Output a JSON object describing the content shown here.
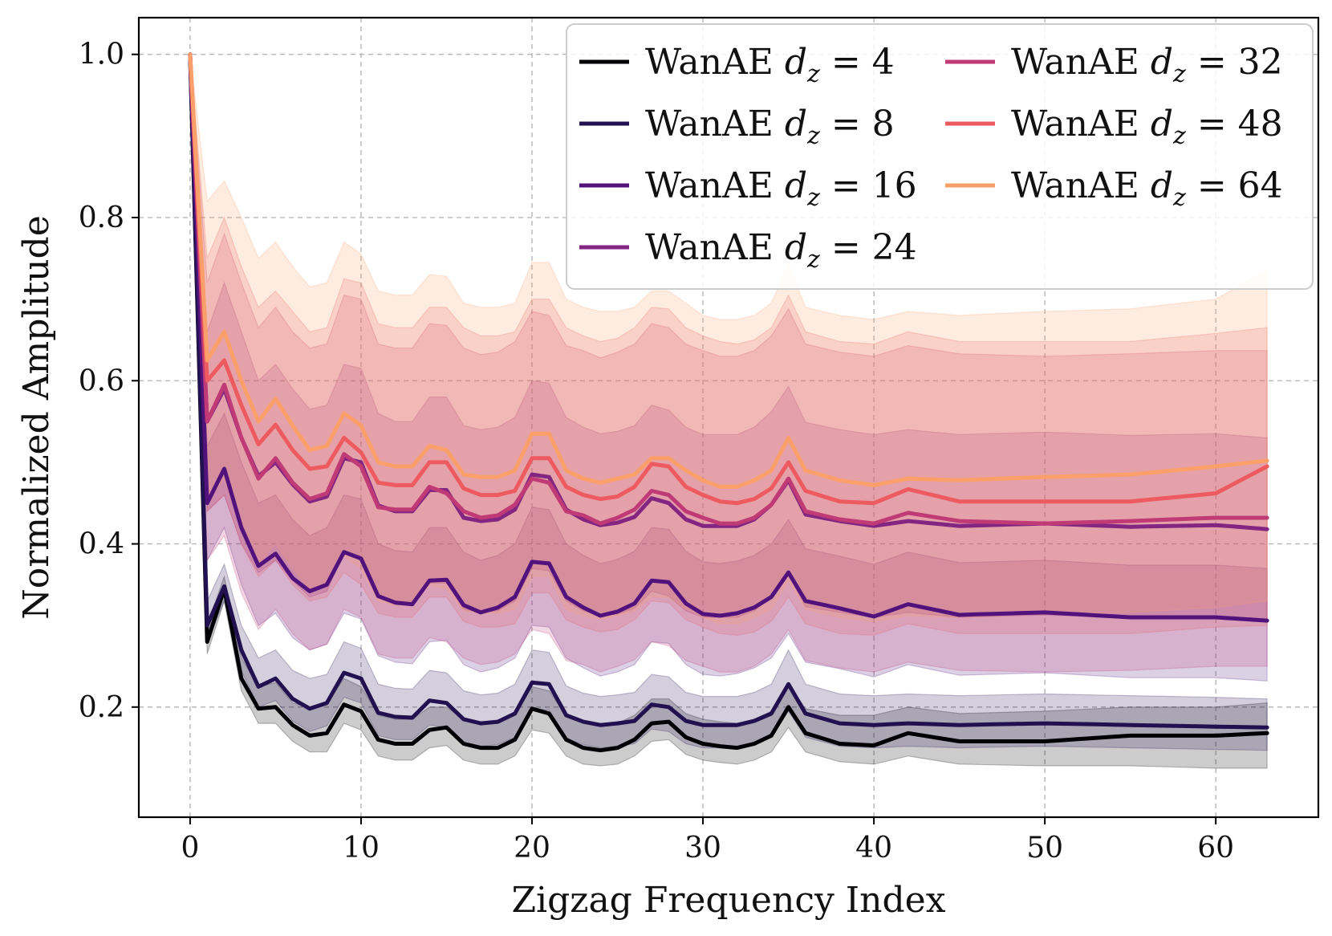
{
  "chart_data": {
    "type": "line",
    "title": "",
    "xlabel": "Zigzag Frequency Index",
    "ylabel": "Normalized Amplitude",
    "xlim": [
      -3,
      66
    ],
    "ylim": [
      0.065,
      1.045
    ],
    "xticks": [
      0,
      10,
      20,
      30,
      40,
      50,
      60
    ],
    "yticks": [
      0.2,
      0.4,
      0.6,
      0.8,
      1.0
    ],
    "ytick_labels": [
      "0.2",
      "0.4",
      "0.6",
      "0.8",
      "1.0"
    ],
    "grid": true,
    "legend": {
      "position": "top-right",
      "columns": 2
    },
    "key_values": [
      0,
      1,
      2,
      3,
      4,
      5,
      6,
      7,
      8,
      9,
      10,
      11,
      12,
      13,
      14,
      15,
      16,
      17,
      18,
      19,
      20,
      21,
      22,
      23,
      24,
      25,
      26,
      27,
      28,
      29,
      30,
      31,
      32,
      33,
      34,
      35,
      36,
      38,
      40,
      42,
      45,
      50,
      55,
      60,
      63
    ],
    "series": [
      {
        "name": "WanAE d_z = 4",
        "prefix": "WanAE ",
        "sym": "d",
        "sub": "z",
        "eq": " = 4",
        "color": "#000004",
        "values": [
          1.0,
          0.28,
          0.345,
          0.235,
          0.198,
          0.2,
          0.178,
          0.165,
          0.168,
          0.203,
          0.195,
          0.16,
          0.155,
          0.155,
          0.172,
          0.175,
          0.155,
          0.15,
          0.15,
          0.16,
          0.198,
          0.192,
          0.16,
          0.15,
          0.147,
          0.15,
          0.16,
          0.18,
          0.182,
          0.163,
          0.155,
          0.152,
          0.15,
          0.155,
          0.165,
          0.2,
          0.168,
          0.155,
          0.153,
          0.168,
          0.158,
          0.158,
          0.165,
          0.165,
          0.168
        ],
        "upper": [
          1.0,
          0.3,
          0.36,
          0.26,
          0.225,
          0.23,
          0.205,
          0.2,
          0.205,
          0.235,
          0.225,
          0.19,
          0.185,
          0.185,
          0.2,
          0.2,
          0.185,
          0.18,
          0.18,
          0.19,
          0.225,
          0.22,
          0.19,
          0.18,
          0.178,
          0.18,
          0.19,
          0.21,
          0.21,
          0.192,
          0.185,
          0.182,
          0.18,
          0.185,
          0.195,
          0.228,
          0.198,
          0.19,
          0.19,
          0.2,
          0.192,
          0.195,
          0.2,
          0.2,
          0.205
        ],
        "lower": [
          1.0,
          0.265,
          0.33,
          0.22,
          0.18,
          0.18,
          0.158,
          0.145,
          0.145,
          0.18,
          0.172,
          0.14,
          0.135,
          0.135,
          0.15,
          0.153,
          0.135,
          0.13,
          0.13,
          0.14,
          0.172,
          0.168,
          0.14,
          0.13,
          0.128,
          0.13,
          0.14,
          0.158,
          0.16,
          0.142,
          0.135,
          0.132,
          0.13,
          0.135,
          0.145,
          0.175,
          0.145,
          0.133,
          0.13,
          0.14,
          0.13,
          0.128,
          0.128,
          0.125,
          0.125
        ]
      },
      {
        "name": "WanAE d_z = 8",
        "prefix": "WanAE ",
        "sym": "d",
        "sub": "z",
        "eq": " = 8",
        "color": "#221150",
        "values": [
          1.0,
          0.3,
          0.348,
          0.27,
          0.225,
          0.235,
          0.21,
          0.198,
          0.205,
          0.242,
          0.235,
          0.193,
          0.188,
          0.187,
          0.208,
          0.205,
          0.185,
          0.18,
          0.182,
          0.192,
          0.23,
          0.228,
          0.19,
          0.182,
          0.178,
          0.18,
          0.183,
          0.203,
          0.2,
          0.183,
          0.178,
          0.178,
          0.178,
          0.183,
          0.192,
          0.228,
          0.192,
          0.18,
          0.178,
          0.18,
          0.178,
          0.18,
          0.178,
          0.176,
          0.175
        ],
        "upper": [
          1.0,
          0.33,
          0.375,
          0.3,
          0.26,
          0.27,
          0.245,
          0.235,
          0.24,
          0.28,
          0.272,
          0.228,
          0.223,
          0.222,
          0.245,
          0.242,
          0.22,
          0.215,
          0.217,
          0.228,
          0.27,
          0.267,
          0.226,
          0.217,
          0.213,
          0.215,
          0.218,
          0.24,
          0.237,
          0.218,
          0.213,
          0.213,
          0.213,
          0.218,
          0.228,
          0.27,
          0.228,
          0.216,
          0.214,
          0.216,
          0.214,
          0.216,
          0.214,
          0.212,
          0.21
        ],
        "lower": [
          1.0,
          0.28,
          0.33,
          0.245,
          0.2,
          0.208,
          0.183,
          0.17,
          0.177,
          0.212,
          0.205,
          0.165,
          0.16,
          0.16,
          0.178,
          0.175,
          0.157,
          0.152,
          0.154,
          0.163,
          0.198,
          0.196,
          0.162,
          0.154,
          0.15,
          0.152,
          0.155,
          0.173,
          0.17,
          0.155,
          0.15,
          0.15,
          0.15,
          0.155,
          0.163,
          0.195,
          0.163,
          0.152,
          0.15,
          0.152,
          0.15,
          0.152,
          0.15,
          0.148,
          0.147
        ]
      },
      {
        "name": "WanAE d_z = 16",
        "prefix": "WanAE ",
        "sym": "d",
        "sub": "z",
        "eq": " = 16",
        "color": "#51127c",
        "values": [
          1.0,
          0.45,
          0.492,
          0.42,
          0.373,
          0.388,
          0.358,
          0.342,
          0.35,
          0.39,
          0.382,
          0.336,
          0.328,
          0.326,
          0.355,
          0.356,
          0.325,
          0.316,
          0.322,
          0.335,
          0.378,
          0.376,
          0.335,
          0.322,
          0.312,
          0.317,
          0.327,
          0.355,
          0.353,
          0.327,
          0.314,
          0.312,
          0.315,
          0.322,
          0.335,
          0.365,
          0.33,
          0.321,
          0.311,
          0.326,
          0.313,
          0.316,
          0.31,
          0.31,
          0.306
        ],
        "upper": [
          1.0,
          0.52,
          0.56,
          0.5,
          0.45,
          0.46,
          0.43,
          0.41,
          0.42,
          0.46,
          0.455,
          0.4,
          0.392,
          0.39,
          0.42,
          0.42,
          0.39,
          0.38,
          0.386,
          0.4,
          0.445,
          0.442,
          0.4,
          0.386,
          0.376,
          0.381,
          0.391,
          0.42,
          0.418,
          0.391,
          0.378,
          0.376,
          0.379,
          0.386,
          0.4,
          0.43,
          0.394,
          0.385,
          0.375,
          0.39,
          0.377,
          0.38,
          0.374,
          0.374,
          0.37
        ],
        "lower": [
          1.0,
          0.38,
          0.42,
          0.35,
          0.3,
          0.315,
          0.285,
          0.27,
          0.277,
          0.315,
          0.308,
          0.263,
          0.255,
          0.253,
          0.28,
          0.282,
          0.252,
          0.243,
          0.248,
          0.26,
          0.3,
          0.298,
          0.26,
          0.248,
          0.238,
          0.243,
          0.252,
          0.28,
          0.278,
          0.252,
          0.24,
          0.238,
          0.241,
          0.248,
          0.26,
          0.29,
          0.255,
          0.247,
          0.237,
          0.252,
          0.239,
          0.242,
          0.236,
          0.236,
          0.232
        ]
      },
      {
        "name": "WanAE d_z = 24",
        "prefix": "WanAE ",
        "sym": "d",
        "sub": "z",
        "eq": " = 24",
        "color": "#832681",
        "values": [
          1.0,
          0.55,
          0.59,
          0.53,
          0.483,
          0.5,
          0.473,
          0.452,
          0.458,
          0.505,
          0.5,
          0.447,
          0.44,
          0.44,
          0.466,
          0.466,
          0.432,
          0.428,
          0.43,
          0.442,
          0.485,
          0.482,
          0.442,
          0.43,
          0.423,
          0.426,
          0.433,
          0.456,
          0.45,
          0.43,
          0.422,
          0.422,
          0.422,
          0.43,
          0.448,
          0.478,
          0.436,
          0.428,
          0.422,
          0.428,
          0.422,
          0.425,
          0.421,
          0.423,
          0.418
        ],
        "upper": [
          1.0,
          0.66,
          0.72,
          0.66,
          0.6,
          0.62,
          0.59,
          0.565,
          0.57,
          0.62,
          0.615,
          0.56,
          0.55,
          0.55,
          0.58,
          0.58,
          0.545,
          0.54,
          0.543,
          0.555,
          0.6,
          0.597,
          0.555,
          0.543,
          0.535,
          0.538,
          0.545,
          0.57,
          0.564,
          0.543,
          0.534,
          0.534,
          0.534,
          0.543,
          0.562,
          0.593,
          0.549,
          0.54,
          0.534,
          0.54,
          0.534,
          0.537,
          0.533,
          0.535,
          0.53
        ],
        "lower": [
          1.0,
          0.44,
          0.46,
          0.4,
          0.365,
          0.38,
          0.355,
          0.335,
          0.342,
          0.39,
          0.385,
          0.335,
          0.33,
          0.33,
          0.352,
          0.352,
          0.32,
          0.316,
          0.318,
          0.33,
          0.37,
          0.367,
          0.33,
          0.318,
          0.312,
          0.314,
          0.321,
          0.342,
          0.336,
          0.318,
          0.31,
          0.31,
          0.31,
          0.318,
          0.335,
          0.363,
          0.323,
          0.316,
          0.31,
          0.316,
          0.31,
          0.313,
          0.309,
          0.311,
          0.306
        ]
      },
      {
        "name": "WanAE d_z = 32",
        "prefix": "WanAE ",
        "sym": "d",
        "sub": "z",
        "eq": " = 32",
        "color": "#c03a76",
        "values": [
          1.0,
          0.55,
          0.595,
          0.53,
          0.48,
          0.505,
          0.475,
          0.455,
          0.462,
          0.51,
          0.495,
          0.445,
          0.442,
          0.442,
          0.47,
          0.462,
          0.44,
          0.432,
          0.435,
          0.448,
          0.48,
          0.475,
          0.44,
          0.435,
          0.425,
          0.432,
          0.442,
          0.465,
          0.46,
          0.44,
          0.432,
          0.425,
          0.425,
          0.432,
          0.448,
          0.48,
          0.44,
          0.43,
          0.425,
          0.438,
          0.428,
          0.425,
          0.428,
          0.432,
          0.432
        ],
        "upper": [
          1.0,
          0.72,
          0.78,
          0.72,
          0.665,
          0.69,
          0.66,
          0.64,
          0.645,
          0.705,
          0.7,
          0.645,
          0.64,
          0.64,
          0.67,
          0.668,
          0.64,
          0.632,
          0.635,
          0.648,
          0.685,
          0.68,
          0.643,
          0.637,
          0.628,
          0.635,
          0.645,
          0.67,
          0.665,
          0.645,
          0.637,
          0.63,
          0.63,
          0.637,
          0.655,
          0.688,
          0.645,
          0.635,
          0.63,
          0.643,
          0.633,
          0.63,
          0.633,
          0.637,
          0.637
        ],
        "lower": [
          1.0,
          0.38,
          0.41,
          0.34,
          0.295,
          0.32,
          0.29,
          0.27,
          0.277,
          0.32,
          0.31,
          0.265,
          0.26,
          0.26,
          0.285,
          0.28,
          0.26,
          0.252,
          0.255,
          0.265,
          0.295,
          0.29,
          0.257,
          0.252,
          0.243,
          0.25,
          0.258,
          0.28,
          0.275,
          0.257,
          0.25,
          0.243,
          0.243,
          0.25,
          0.265,
          0.295,
          0.257,
          0.248,
          0.243,
          0.255,
          0.245,
          0.243,
          0.245,
          0.25,
          0.25
        ]
      },
      {
        "name": "WanAE d_z = 48",
        "prefix": "WanAE ",
        "sym": "d",
        "sub": "z",
        "eq": " = 48",
        "color": "#ed5a5f",
        "values": [
          1.0,
          0.6,
          0.625,
          0.57,
          0.522,
          0.546,
          0.515,
          0.492,
          0.495,
          0.53,
          0.512,
          0.475,
          0.472,
          0.472,
          0.5,
          0.5,
          0.468,
          0.46,
          0.46,
          0.465,
          0.505,
          0.505,
          0.47,
          0.46,
          0.455,
          0.458,
          0.47,
          0.498,
          0.495,
          0.47,
          0.46,
          0.452,
          0.45,
          0.455,
          0.468,
          0.5,
          0.465,
          0.452,
          0.45,
          0.467,
          0.452,
          0.452,
          0.452,
          0.462,
          0.495
        ],
        "upper": [
          1.0,
          0.75,
          0.8,
          0.74,
          0.69,
          0.71,
          0.685,
          0.66,
          0.665,
          0.725,
          0.72,
          0.67,
          0.665,
          0.665,
          0.69,
          0.69,
          0.665,
          0.655,
          0.655,
          0.66,
          0.7,
          0.7,
          0.665,
          0.655,
          0.648,
          0.652,
          0.665,
          0.69,
          0.688,
          0.665,
          0.655,
          0.648,
          0.645,
          0.65,
          0.665,
          0.705,
          0.66,
          0.648,
          0.645,
          0.66,
          0.648,
          0.648,
          0.648,
          0.658,
          0.665
        ],
        "lower": [
          1.0,
          0.44,
          0.46,
          0.4,
          0.36,
          0.38,
          0.35,
          0.33,
          0.335,
          0.365,
          0.35,
          0.315,
          0.31,
          0.31,
          0.335,
          0.335,
          0.305,
          0.298,
          0.298,
          0.302,
          0.34,
          0.34,
          0.307,
          0.298,
          0.292,
          0.295,
          0.307,
          0.33,
          0.328,
          0.307,
          0.298,
          0.29,
          0.288,
          0.292,
          0.305,
          0.335,
          0.302,
          0.29,
          0.288,
          0.302,
          0.29,
          0.29,
          0.29,
          0.298,
          0.3
        ]
      },
      {
        "name": "WanAE d_z = 64",
        "prefix": "WanAE ",
        "sym": "d",
        "sub": "z",
        "eq": " = 64",
        "color": "#fb9f6a",
        "values": [
          1.0,
          0.625,
          0.66,
          0.6,
          0.55,
          0.578,
          0.545,
          0.515,
          0.52,
          0.56,
          0.545,
          0.5,
          0.495,
          0.495,
          0.52,
          0.515,
          0.485,
          0.482,
          0.482,
          0.49,
          0.535,
          0.535,
          0.49,
          0.48,
          0.475,
          0.48,
          0.485,
          0.505,
          0.505,
          0.49,
          0.478,
          0.47,
          0.47,
          0.478,
          0.49,
          0.53,
          0.49,
          0.478,
          0.472,
          0.48,
          0.478,
          0.482,
          0.485,
          0.495,
          0.502
        ],
        "upper": [
          1.0,
          0.82,
          0.845,
          0.8,
          0.75,
          0.77,
          0.74,
          0.715,
          0.72,
          0.77,
          0.755,
          0.71,
          0.705,
          0.705,
          0.73,
          0.728,
          0.695,
          0.69,
          0.69,
          0.695,
          0.745,
          0.745,
          0.7,
          0.69,
          0.685,
          0.685,
          0.69,
          0.71,
          0.71,
          0.695,
          0.68,
          0.675,
          0.675,
          0.68,
          0.695,
          0.742,
          0.69,
          0.68,
          0.675,
          0.685,
          0.68,
          0.685,
          0.688,
          0.7,
          0.735
        ],
        "lower": [
          1.0,
          0.45,
          0.48,
          0.42,
          0.375,
          0.4,
          0.37,
          0.345,
          0.35,
          0.385,
          0.37,
          0.33,
          0.325,
          0.325,
          0.35,
          0.345,
          0.318,
          0.315,
          0.315,
          0.32,
          0.36,
          0.36,
          0.32,
          0.312,
          0.308,
          0.312,
          0.318,
          0.335,
          0.335,
          0.32,
          0.31,
          0.302,
          0.302,
          0.31,
          0.32,
          0.355,
          0.32,
          0.31,
          0.305,
          0.312,
          0.31,
          0.314,
          0.316,
          0.322,
          0.33
        ]
      }
    ]
  }
}
